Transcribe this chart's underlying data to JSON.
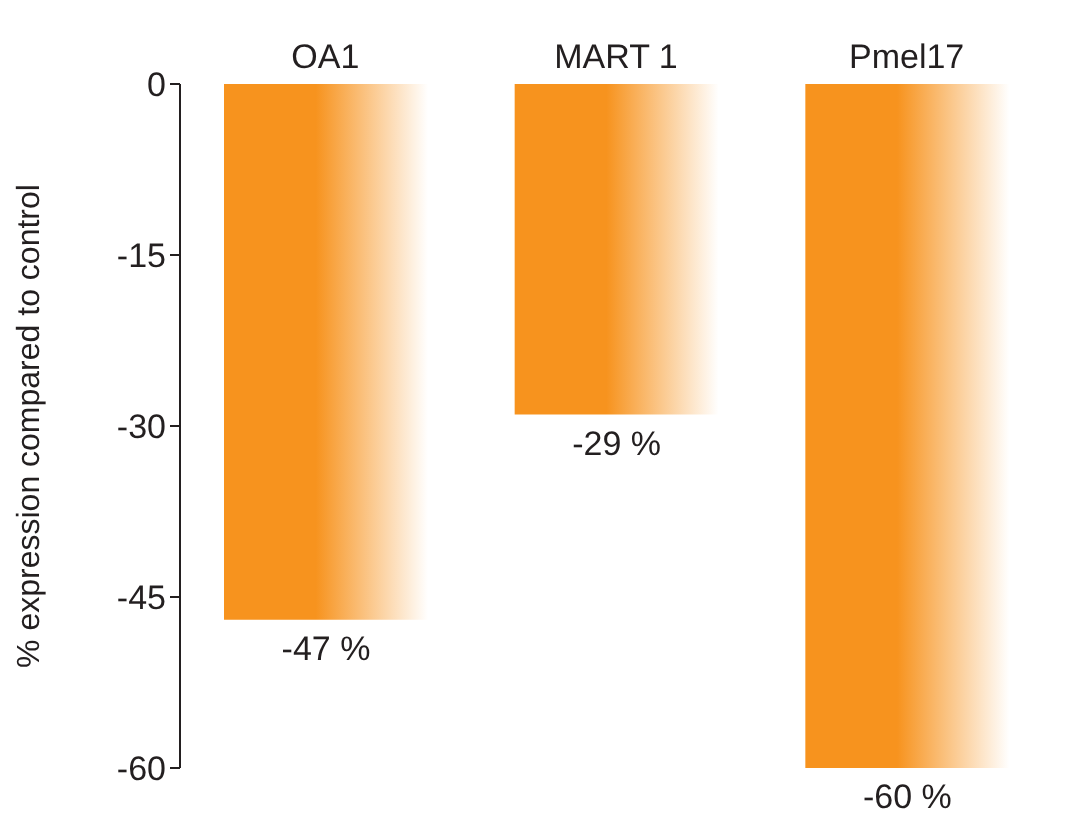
{
  "chart_data": {
    "type": "bar",
    "ylabel": "% expression compared to control",
    "categories": [
      "OA1",
      "MART 1",
      "Pmel17"
    ],
    "values": [
      -47,
      -29,
      -60
    ],
    "color": "#f7931e",
    "value_labels": [
      "-47 %",
      "-29 %",
      "-60 %"
    ],
    "ylim": [
      -60,
      0
    ],
    "yticks": [
      0,
      -15,
      -30,
      -45,
      -60
    ],
    "grid": false,
    "legend": false
  }
}
